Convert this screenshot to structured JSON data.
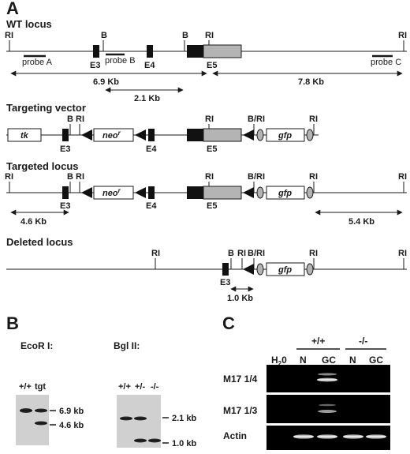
{
  "panels": {
    "a": "A",
    "b": "B",
    "c": "C"
  },
  "wt": {
    "title": "WT locus",
    "site_labels": [
      "RI",
      "B",
      "B",
      "RI",
      "RI"
    ],
    "exons": [
      "E3",
      "E4",
      "E5"
    ],
    "probes": [
      "probe A",
      "probe B",
      "probe C"
    ],
    "distances": [
      "6.9 Kb",
      "7.8 Kb",
      "2.1 Kb"
    ]
  },
  "vector": {
    "title": "Targeting vector",
    "site_labels": [
      "B",
      "RI",
      "RI",
      "B/RI",
      "RI"
    ],
    "exons": [
      "E3",
      "E4",
      "E5"
    ],
    "boxes": {
      "tk": "tk",
      "neo": "neo",
      "neo_sup": "r",
      "gfp": "gfp"
    }
  },
  "targeted": {
    "title": "Targeted locus",
    "site_labels": [
      "RI",
      "B",
      "RI",
      "RI",
      "B/RI",
      "RI",
      "RI"
    ],
    "exons": [
      "E3",
      "E4",
      "E5"
    ],
    "boxes": {
      "neo": "neo",
      "neo_sup": "r",
      "gfp": "gfp"
    },
    "distances": [
      "4.6 Kb",
      "5.4 Kb"
    ]
  },
  "deleted": {
    "title": "Deleted locus",
    "site_labels": [
      "RI",
      "B",
      "RI",
      "B/RI",
      "RI",
      "RI"
    ],
    "exons": [
      "E3"
    ],
    "boxes": {
      "gfp": "gfp"
    },
    "distances": [
      "1.0 Kb"
    ]
  },
  "blot_ecor": {
    "title": "EcoR I:",
    "lanes": [
      "+/+",
      "tgt"
    ],
    "markers": [
      "6.9 kb",
      "4.6 kb"
    ]
  },
  "blot_bgl": {
    "title": "Bgl II:",
    "lanes": [
      "+/+",
      "+/-",
      "-/-"
    ],
    "markers": [
      "2.1 kb",
      "1.0 kb"
    ]
  },
  "pcr": {
    "groups": [
      "+/+",
      "-/-"
    ],
    "h2o": "H",
    "h2o_sub": "2",
    "h2o_tail": "0",
    "lanes": [
      "N",
      "GC",
      "N",
      "GC"
    ],
    "rows": [
      "M17 1/4",
      "M17 1/3",
      "Actin"
    ]
  },
  "colors": {
    "ink": "#1a1a1a",
    "exon": "#111111",
    "exon5": "#b4b4b4",
    "blot": "#d0d0d0",
    "gel": "#000000"
  }
}
